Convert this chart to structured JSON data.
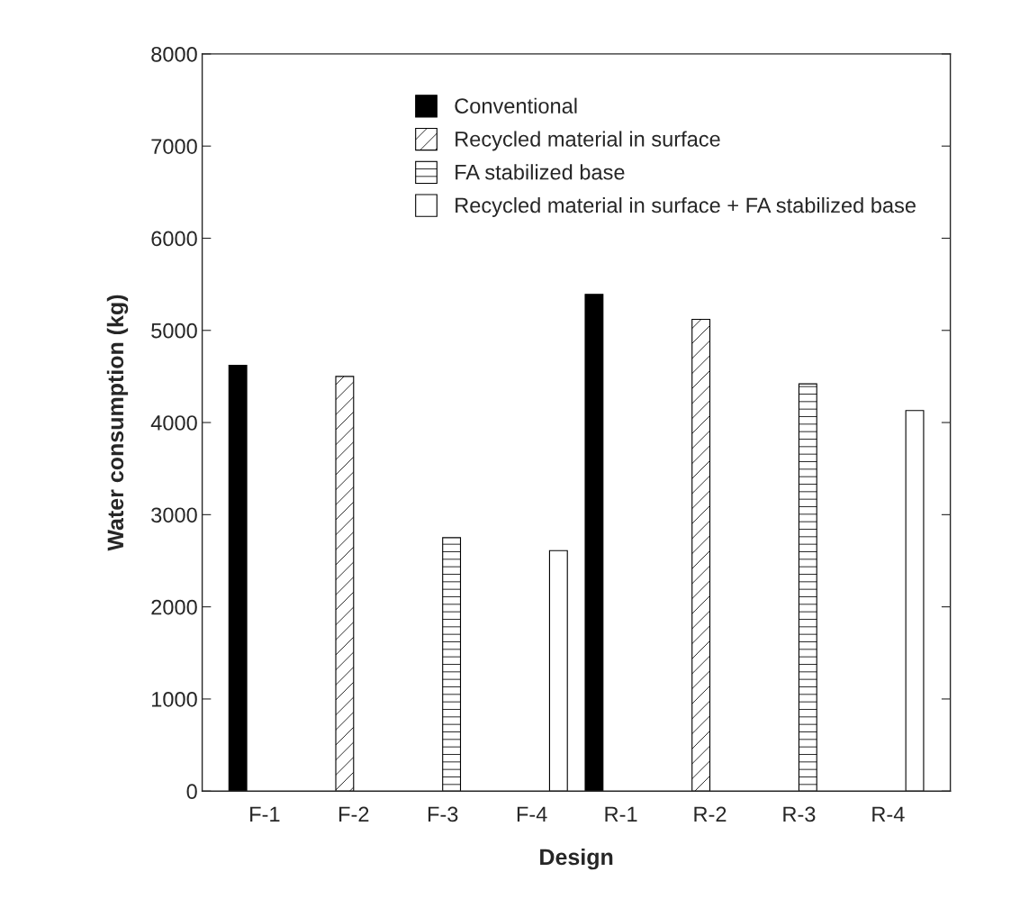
{
  "chart_data": {
    "type": "bar",
    "xlabel": "Design",
    "ylabel": "Water consumption (kg)",
    "categories": [
      "F-1",
      "F-2",
      "F-3",
      "F-4",
      "R-1",
      "R-2",
      "R-3",
      "R-4"
    ],
    "series": [
      {
        "name": "Conventional",
        "color": "#000000",
        "values": [
          4620,
          null,
          null,
          null,
          5390,
          null,
          null,
          null
        ]
      },
      {
        "name": "Recycled material in surface",
        "color": "#000000",
        "values": [
          null,
          4500,
          null,
          null,
          null,
          5120,
          null,
          null
        ]
      },
      {
        "name": "FA stabilized base",
        "color": "#000000",
        "values": [
          null,
          null,
          2750,
          null,
          null,
          null,
          4420,
          null
        ]
      },
      {
        "name": "Recycled material in surface + FA stabilized base",
        "color": "#ffffff",
        "values": [
          null,
          null,
          null,
          2610,
          null,
          null,
          null,
          4130
        ]
      }
    ],
    "ylim": [
      0,
      8000
    ],
    "yticks": [
      0,
      1000,
      2000,
      3000,
      4000,
      5000,
      6000,
      7000,
      8000
    ],
    "grid": false,
    "legend": "top"
  }
}
